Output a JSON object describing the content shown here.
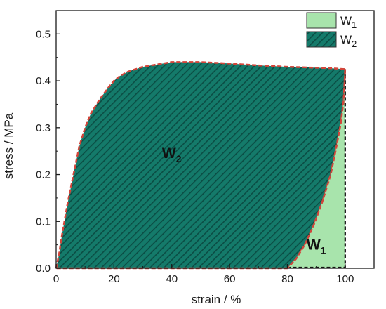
{
  "chart_data": {
    "type": "area",
    "xlabel": "strain / %",
    "ylabel": "stress / MPa",
    "xlim": [
      0,
      110
    ],
    "ylim": [
      0,
      0.55
    ],
    "xticks": [
      0,
      20,
      40,
      60,
      80,
      100
    ],
    "yticks": [
      0.0,
      0.1,
      0.2,
      0.3,
      0.4,
      0.5
    ],
    "xtick_labels": [
      "0",
      "20",
      "40",
      "60",
      "80",
      "100"
    ],
    "ytick_labels": [
      "0.0",
      "0.1",
      "0.2",
      "0.3",
      "0.4",
      "0.5"
    ],
    "grid": false,
    "legend_position": "top-right",
    "series": [
      {
        "name": "W1",
        "name_main": "W",
        "name_sub": "1",
        "fill": "#a8e4ac",
        "pattern": "solid",
        "description_region": "recovered (elastic) energy, between unloading curve and strain axis",
        "x": [
          80,
          83,
          86,
          89,
          92,
          95,
          97,
          98.5,
          99.5,
          100,
          100,
          80
        ],
        "y": [
          0.0,
          0.02,
          0.05,
          0.09,
          0.14,
          0.2,
          0.26,
          0.31,
          0.36,
          0.425,
          0.0,
          0.0
        ]
      },
      {
        "name": "W2",
        "name_main": "W",
        "name_sub": "2",
        "fill": "#147a6a",
        "pattern": "hatched",
        "description_region": "dissipated energy, loop between loading and unloading curves",
        "loading": {
          "x": [
            0,
            1,
            2,
            4,
            6,
            8,
            10,
            12,
            15,
            18,
            20,
            22,
            25,
            30,
            40,
            50,
            60,
            70,
            80,
            90,
            95,
            100
          ],
          "y": [
            0.0,
            0.03,
            0.07,
            0.14,
            0.2,
            0.26,
            0.3,
            0.33,
            0.36,
            0.385,
            0.4,
            0.41,
            0.42,
            0.43,
            0.44,
            0.44,
            0.437,
            0.433,
            0.43,
            0.428,
            0.427,
            0.425
          ]
        },
        "unloading": {
          "x": [
            100,
            99.5,
            98.5,
            97,
            95,
            92,
            89,
            86,
            83,
            80
          ],
          "y": [
            0.425,
            0.36,
            0.31,
            0.26,
            0.2,
            0.14,
            0.09,
            0.05,
            0.02,
            0.0
          ]
        }
      }
    ],
    "annotations": [
      {
        "main": "W",
        "sub": "2",
        "x": 40,
        "y": 0.235
      },
      {
        "main": "W",
        "sub": "1",
        "x": 90,
        "y": 0.04
      }
    ],
    "colors": {
      "axis": "#1a1a1a",
      "outline": "#d2453a",
      "hatch": "#0b4d44",
      "dashed_border": "#111111"
    }
  }
}
